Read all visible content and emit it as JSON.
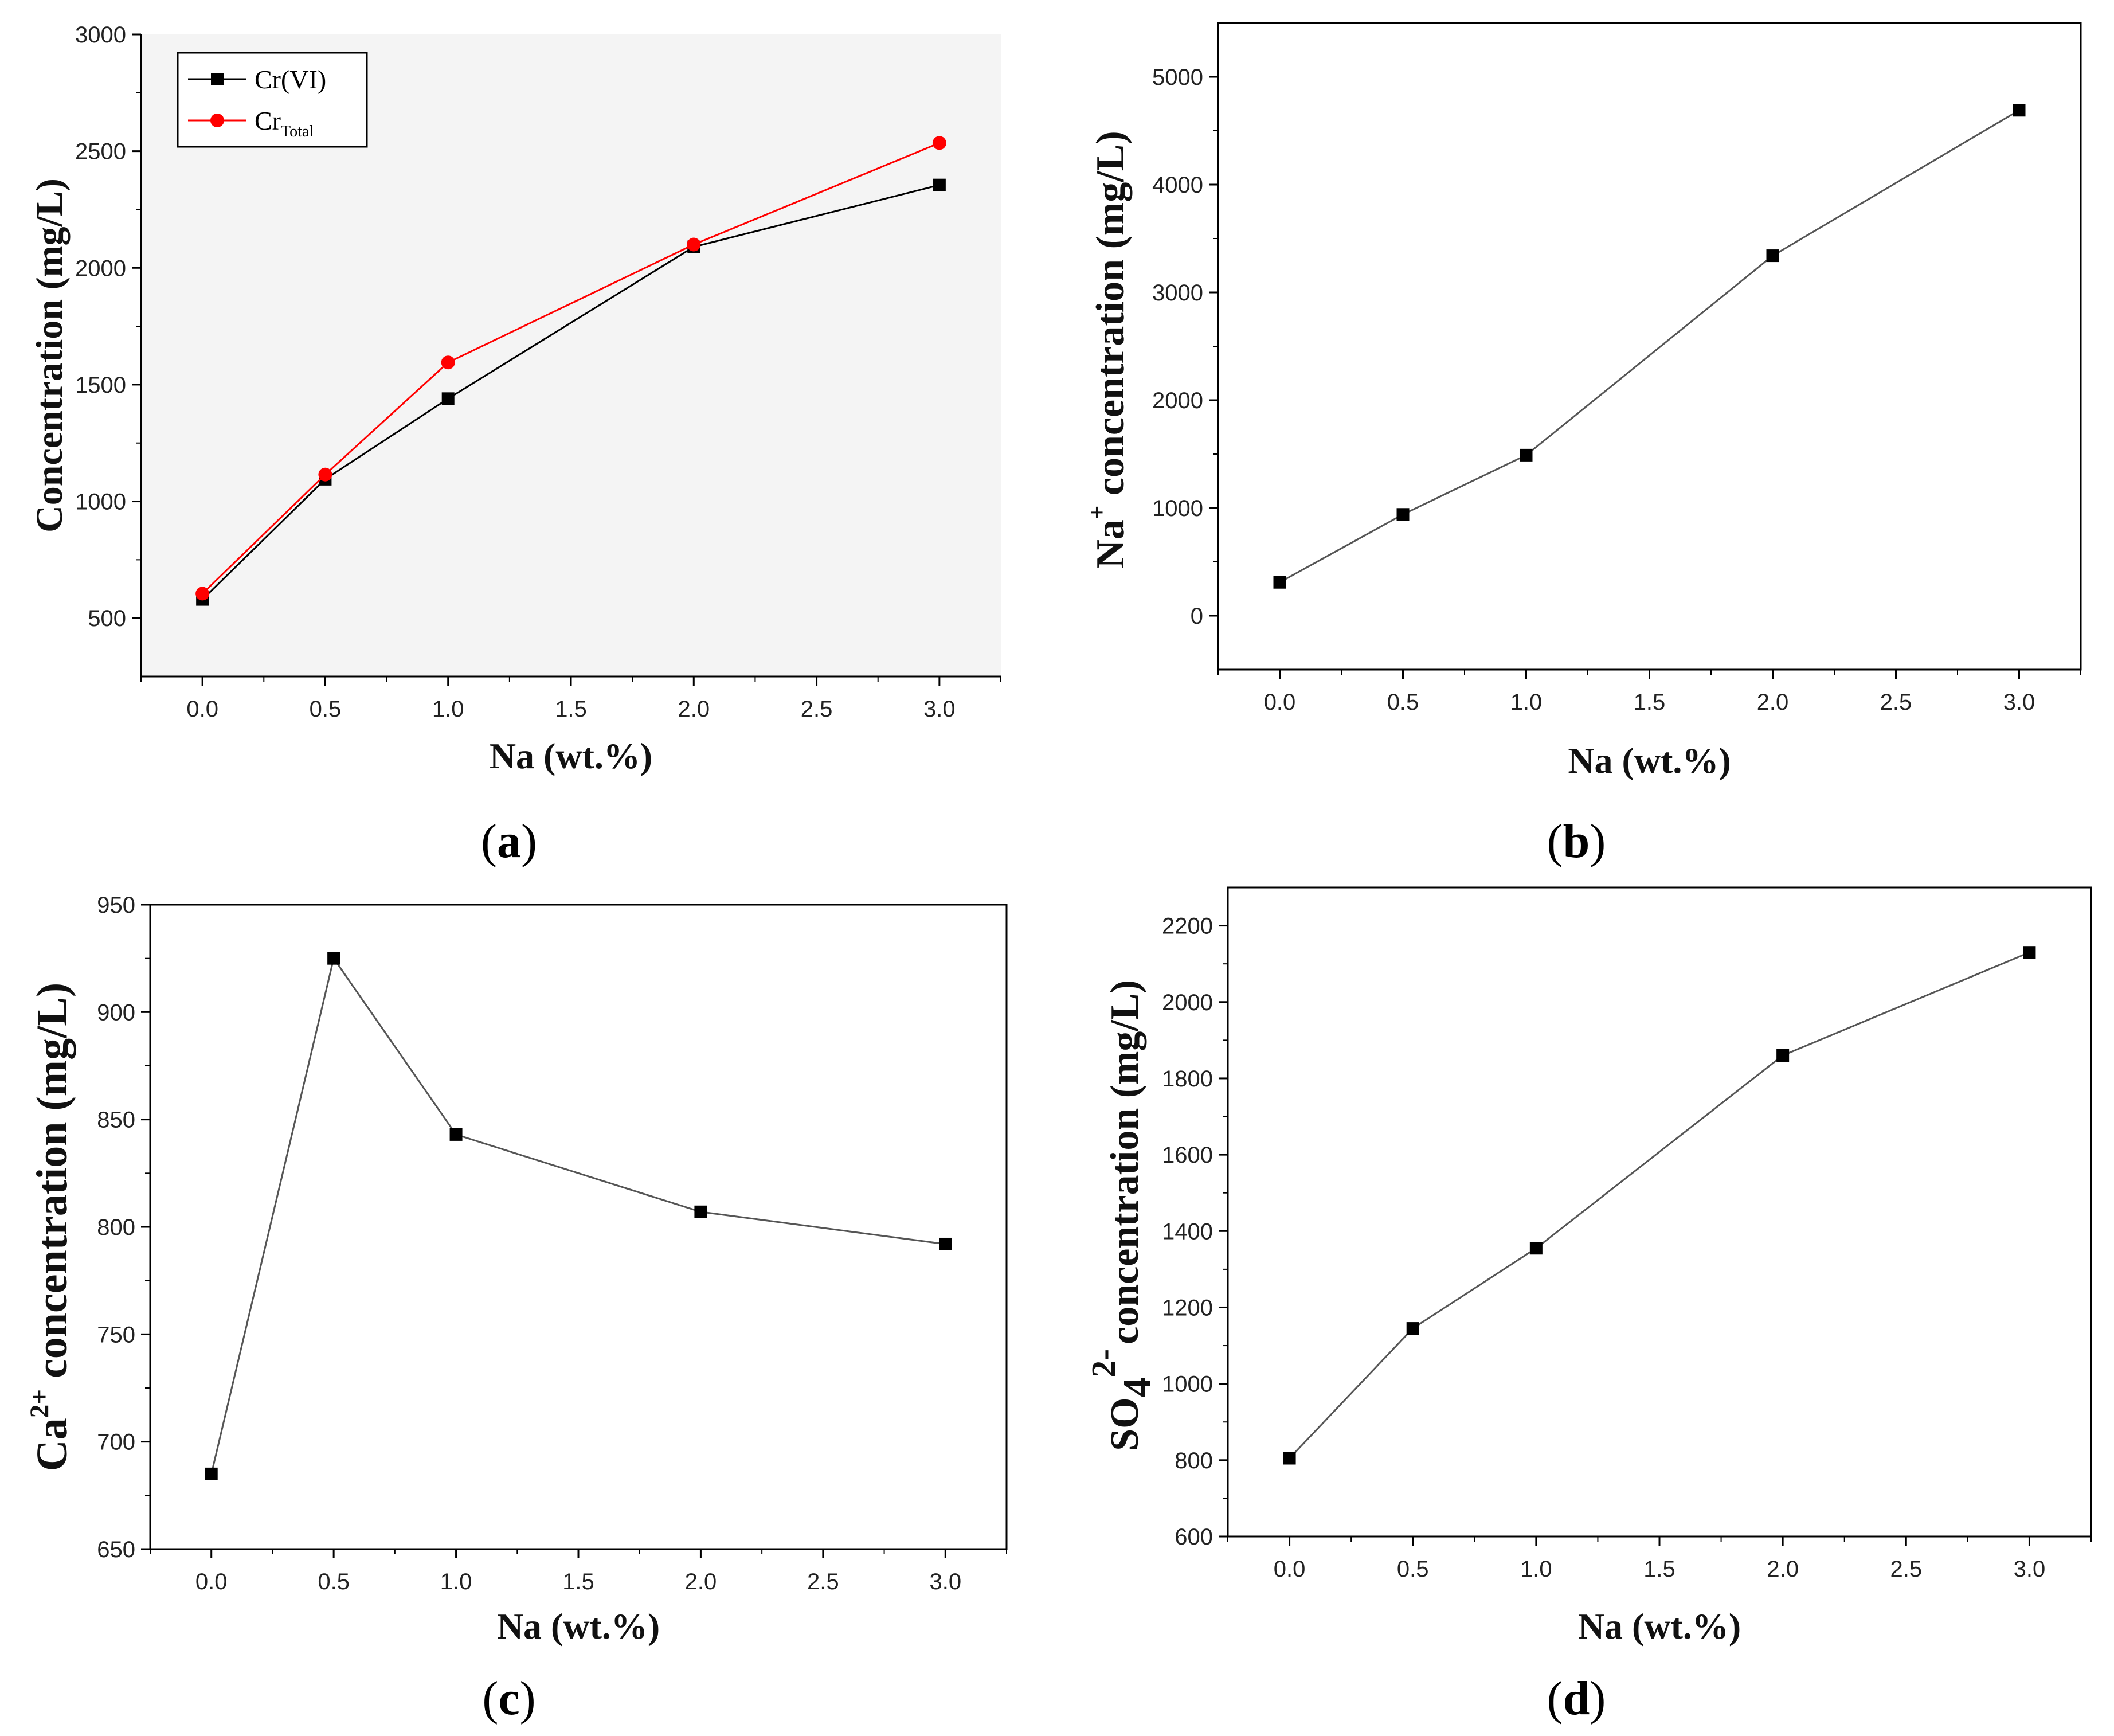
{
  "colors": {
    "black_series": "#000000",
    "red_series": "#ff0000",
    "gray_line": "#555555",
    "axis": "#000000"
  },
  "chart_data": [
    {
      "id": "a",
      "type": "line",
      "caption_prefix": "(",
      "caption_letter": "a",
      "caption_suffix": ")",
      "xlabel": "Na (wt.%)",
      "ylabel": "Concentration (mg/L)",
      "xlim": [
        -0.25,
        3.25
      ],
      "ylim": [
        250,
        3000
      ],
      "xticks": [
        "0.0",
        "0.5",
        "1.0",
        "1.5",
        "2.0",
        "2.5",
        "3.0"
      ],
      "yticks": [
        "500",
        "1000",
        "1500",
        "2000",
        "2500",
        "3000"
      ],
      "legend_position": "top-left",
      "series": [
        {
          "name": "Cr(VI)",
          "legend_main": "Cr(VI)",
          "legend_sub": "",
          "marker": "square",
          "color": "#000000",
          "x": [
            0,
            0.5,
            1,
            2,
            3
          ],
          "values": [
            580,
            1095,
            1440,
            2090,
            2355
          ]
        },
        {
          "name": "Cr Total",
          "legend_main": "Cr",
          "legend_sub": "Total",
          "marker": "circle",
          "color": "#ff0000",
          "x": [
            0,
            0.5,
            1,
            2,
            3
          ],
          "values": [
            605,
            1115,
            1595,
            2100,
            2535
          ]
        }
      ]
    },
    {
      "id": "b",
      "type": "line",
      "caption_prefix": "(",
      "caption_letter": "b",
      "caption_suffix": ")",
      "xlabel": "Na (wt.%)",
      "ylabel_main": "Na",
      "ylabel_sup": "+",
      "ylabel_tail": " concentration (mg/L)",
      "xlim": [
        -0.25,
        3.25
      ],
      "ylim": [
        -500,
        5500
      ],
      "xticks": [
        "0.0",
        "0.5",
        "1.0",
        "1.5",
        "2.0",
        "2.5",
        "3.0"
      ],
      "yticks": [
        "0",
        "1000",
        "2000",
        "3000",
        "4000",
        "5000"
      ],
      "series": [
        {
          "name": "Na+",
          "marker": "square",
          "color": "#000000",
          "x": [
            0,
            0.5,
            1,
            2,
            3
          ],
          "values": [
            310,
            940,
            1490,
            3340,
            4690
          ]
        }
      ]
    },
    {
      "id": "c",
      "type": "line",
      "caption_prefix": "(",
      "caption_letter": "c",
      "caption_suffix": ")",
      "xlabel": "Na (wt.%)",
      "ylabel_main": "Ca",
      "ylabel_sup": "2+",
      "ylabel_tail": " concentration (mg/L)",
      "xlim": [
        -0.25,
        3.25
      ],
      "ylim": [
        650,
        950
      ],
      "xticks": [
        "0.0",
        "0.5",
        "1.0",
        "1.5",
        "2.0",
        "2.5",
        "3.0"
      ],
      "yticks": [
        "650",
        "700",
        "750",
        "800",
        "850",
        "900",
        "950"
      ],
      "series": [
        {
          "name": "Ca2+",
          "marker": "square",
          "color": "#000000",
          "x": [
            0,
            0.5,
            1,
            2,
            3
          ],
          "values": [
            685,
            925,
            843,
            807,
            792
          ]
        }
      ]
    },
    {
      "id": "d",
      "type": "line",
      "caption_prefix": "(",
      "caption_letter": "d",
      "caption_suffix": ")",
      "xlabel": "Na (wt.%)",
      "ylabel_main": "SO",
      "ylabel_sub": "4",
      "ylabel_sup": "2-",
      "ylabel_tail": "concentration (mg/L)",
      "xlim": [
        -0.25,
        3.25
      ],
      "ylim": [
        600,
        2300
      ],
      "xticks": [
        "0.0",
        "0.5",
        "1.0",
        "1.5",
        "2.0",
        "2.5",
        "3.0"
      ],
      "yticks": [
        "600",
        "800",
        "1000",
        "1200",
        "1400",
        "1600",
        "1800",
        "2000",
        "2200"
      ],
      "series": [
        {
          "name": "SO4 2-",
          "marker": "square",
          "color": "#000000",
          "x": [
            0,
            0.5,
            1,
            2,
            3
          ],
          "values": [
            805,
            1145,
            1355,
            1860,
            2130
          ]
        }
      ]
    }
  ]
}
